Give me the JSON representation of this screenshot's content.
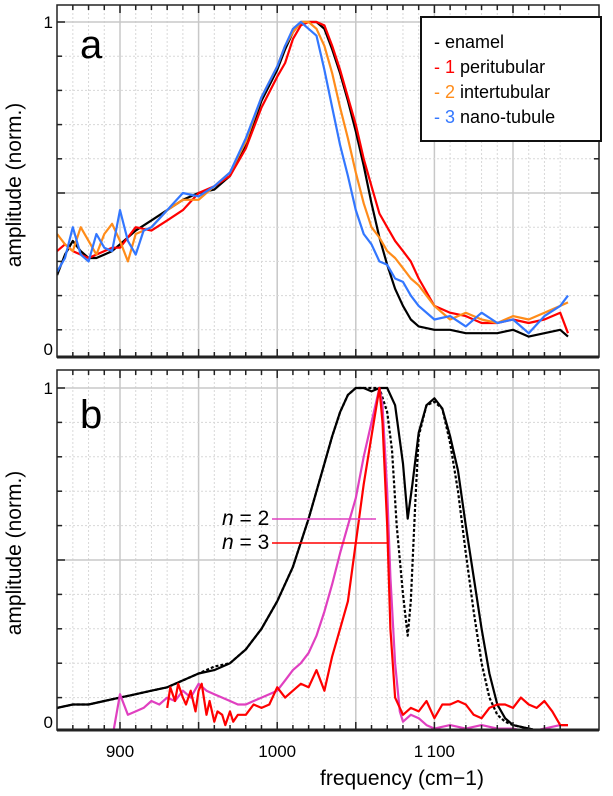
{
  "chart_data": [
    {
      "type": "line",
      "panel_label": "a",
      "ylabel": "amplitude (norm.)",
      "xlabel": "",
      "xlim": [
        860,
        1185
      ],
      "ylim": [
        0,
        1.02
      ],
      "y_tick_labels": [
        {
          "value": 1,
          "label": "1"
        },
        {
          "value": 0,
          "label": "0"
        }
      ],
      "grid": true,
      "legend_position": "top-right",
      "legend": [
        {
          "marker": "-",
          "num": "",
          "label": "enamel",
          "color": "#000000"
        },
        {
          "marker": "-",
          "num": "1",
          "label": "peritubular",
          "color": "#ff0000"
        },
        {
          "marker": "-",
          "num": "2",
          "label": "intertubular",
          "color": "#ff8c1a"
        },
        {
          "marker": "-",
          "num": "3",
          "label": "nano-tubule",
          "color": "#3377ff"
        }
      ],
      "series": [
        {
          "name": "enamel",
          "color": "#000000",
          "x": [
            860,
            865,
            870,
            875,
            880,
            885,
            890,
            895,
            900,
            910,
            920,
            930,
            940,
            950,
            960,
            970,
            980,
            990,
            1000,
            1005,
            1010,
            1015,
            1020,
            1025,
            1030,
            1035,
            1040,
            1045,
            1050,
            1055,
            1060,
            1065,
            1070,
            1075,
            1080,
            1085,
            1090,
            1100,
            1110,
            1120,
            1130,
            1140,
            1150,
            1160,
            1170,
            1180,
            1185
          ],
          "y": [
            0.26,
            0.32,
            0.36,
            0.33,
            0.31,
            0.31,
            0.32,
            0.33,
            0.35,
            0.39,
            0.42,
            0.45,
            0.48,
            0.5,
            0.51,
            0.55,
            0.64,
            0.77,
            0.86,
            0.92,
            0.97,
            1.0,
            1.0,
            1.0,
            0.98,
            0.92,
            0.85,
            0.77,
            0.68,
            0.58,
            0.47,
            0.37,
            0.29,
            0.22,
            0.17,
            0.13,
            0.11,
            0.1,
            0.1,
            0.09,
            0.09,
            0.09,
            0.1,
            0.08,
            0.09,
            0.1,
            0.08
          ]
        },
        {
          "name": "1 peritubular",
          "color": "#ff0000",
          "x": [
            860,
            865,
            870,
            875,
            880,
            885,
            890,
            895,
            900,
            910,
            920,
            930,
            940,
            950,
            960,
            970,
            980,
            990,
            1000,
            1005,
            1010,
            1015,
            1020,
            1025,
            1030,
            1035,
            1040,
            1045,
            1050,
            1055,
            1060,
            1065,
            1070,
            1075,
            1080,
            1085,
            1090,
            1100,
            1110,
            1120,
            1130,
            1140,
            1150,
            1160,
            1170,
            1180,
            1185
          ],
          "y": [
            0.33,
            0.35,
            0.33,
            0.32,
            0.31,
            0.32,
            0.33,
            0.34,
            0.34,
            0.4,
            0.39,
            0.42,
            0.45,
            0.5,
            0.52,
            0.55,
            0.63,
            0.75,
            0.84,
            0.88,
            0.95,
            0.99,
            1.0,
            1.0,
            0.99,
            0.93,
            0.86,
            0.78,
            0.7,
            0.6,
            0.52,
            0.44,
            0.4,
            0.36,
            0.33,
            0.3,
            0.25,
            0.17,
            0.15,
            0.14,
            0.12,
            0.12,
            0.13,
            0.12,
            0.13,
            0.15,
            0.09
          ]
        },
        {
          "name": "2 intertubular",
          "color": "#ff8c1a",
          "x": [
            860,
            865,
            870,
            875,
            880,
            885,
            890,
            895,
            900,
            905,
            910,
            920,
            930,
            940,
            950,
            960,
            970,
            980,
            990,
            1000,
            1005,
            1010,
            1015,
            1020,
            1025,
            1030,
            1035,
            1040,
            1045,
            1050,
            1055,
            1060,
            1065,
            1070,
            1075,
            1080,
            1085,
            1090,
            1100,
            1110,
            1120,
            1130,
            1140,
            1150,
            1160,
            1170,
            1180,
            1185
          ],
          "y": [
            0.38,
            0.35,
            0.33,
            0.4,
            0.36,
            0.32,
            0.38,
            0.41,
            0.36,
            0.3,
            0.38,
            0.4,
            0.45,
            0.48,
            0.48,
            0.52,
            0.56,
            0.65,
            0.78,
            0.87,
            0.93,
            0.97,
            1.0,
            1.0,
            0.98,
            0.93,
            0.85,
            0.75,
            0.66,
            0.56,
            0.47,
            0.4,
            0.37,
            0.33,
            0.31,
            0.28,
            0.25,
            0.23,
            0.17,
            0.13,
            0.15,
            0.13,
            0.12,
            0.14,
            0.13,
            0.15,
            0.17,
            0.18
          ]
        },
        {
          "name": "3 nano-tubule",
          "color": "#3377ff",
          "x": [
            860,
            865,
            870,
            875,
            880,
            885,
            890,
            895,
            900,
            905,
            910,
            915,
            920,
            930,
            940,
            950,
            960,
            970,
            980,
            990,
            1000,
            1005,
            1010,
            1015,
            1020,
            1025,
            1030,
            1035,
            1040,
            1045,
            1050,
            1055,
            1060,
            1065,
            1070,
            1075,
            1080,
            1085,
            1090,
            1100,
            1110,
            1120,
            1130,
            1140,
            1150,
            1160,
            1170,
            1180,
            1185
          ],
          "y": [
            0.27,
            0.31,
            0.4,
            0.32,
            0.3,
            0.38,
            0.34,
            0.33,
            0.45,
            0.36,
            0.32,
            0.39,
            0.4,
            0.45,
            0.5,
            0.49,
            0.52,
            0.56,
            0.66,
            0.78,
            0.87,
            0.93,
            0.98,
            1.0,
            0.98,
            0.96,
            0.86,
            0.75,
            0.64,
            0.55,
            0.45,
            0.38,
            0.35,
            0.3,
            0.29,
            0.25,
            0.24,
            0.2,
            0.17,
            0.13,
            0.14,
            0.11,
            0.15,
            0.12,
            0.13,
            0.09,
            0.14,
            0.17,
            0.2
          ]
        }
      ]
    },
    {
      "type": "line",
      "panel_label": "b",
      "ylabel": "amplitude (norm.)",
      "xlabel": "frequency (cm−1)",
      "xlim": [
        860,
        1185
      ],
      "ylim": [
        0,
        1.02
      ],
      "x_tick_labels": [
        {
          "value": 900,
          "label": "900"
        },
        {
          "value": 1000,
          "label": "1000"
        },
        {
          "value": 1100,
          "label": "1 100"
        }
      ],
      "y_tick_labels": [
        {
          "value": 1,
          "label": "1"
        },
        {
          "value": 0,
          "label": "0"
        }
      ],
      "grid": true,
      "annotations": [
        {
          "text_italic": "n",
          "text": " = 2",
          "color": "#e040c0",
          "points_to_x": 1055,
          "points_to_y": 0.59
        },
        {
          "text_italic": "n",
          "text": " = 3",
          "color": "#ff0000",
          "points_to_x": 1059,
          "points_to_y": 0.52
        }
      ],
      "series": [
        {
          "name": "enamel (solid)",
          "color": "#000000",
          "style": "solid",
          "x": [
            860,
            870,
            880,
            890,
            900,
            910,
            920,
            930,
            940,
            950,
            960,
            970,
            980,
            990,
            1000,
            1010,
            1020,
            1030,
            1035,
            1040,
            1045,
            1050,
            1055,
            1060,
            1065,
            1070,
            1075,
            1080,
            1083,
            1086,
            1090,
            1095,
            1100,
            1105,
            1110,
            1115,
            1120,
            1125,
            1130,
            1135,
            1140,
            1145,
            1150,
            1160,
            1170,
            1180,
            1185
          ],
          "y": [
            0.07,
            0.08,
            0.08,
            0.09,
            0.1,
            0.11,
            0.12,
            0.13,
            0.15,
            0.17,
            0.18,
            0.2,
            0.24,
            0.3,
            0.38,
            0.48,
            0.62,
            0.78,
            0.86,
            0.93,
            0.98,
            1.0,
            1.0,
            0.99,
            1.0,
            1.0,
            0.95,
            0.78,
            0.62,
            0.72,
            0.87,
            0.95,
            0.97,
            0.94,
            0.86,
            0.76,
            0.6,
            0.45,
            0.3,
            0.17,
            0.08,
            0.04,
            0.02,
            0.01,
            0.0,
            0.0,
            0.0
          ]
        },
        {
          "name": "enamel (dotted)",
          "color": "#000000",
          "style": "dotted",
          "x": [
            860,
            870,
            880,
            890,
            900,
            910,
            920,
            930,
            940,
            950,
            960,
            970,
            980,
            990,
            1000,
            1010,
            1020,
            1030,
            1035,
            1040,
            1045,
            1050,
            1055,
            1060,
            1065,
            1070,
            1073,
            1076,
            1080,
            1083,
            1085,
            1088,
            1090,
            1095,
            1100,
            1105,
            1110,
            1115,
            1120,
            1125,
            1130,
            1135,
            1140,
            1145,
            1150,
            1160,
            1170,
            1180,
            1185
          ],
          "y": [
            0.07,
            0.08,
            0.08,
            0.09,
            0.1,
            0.11,
            0.12,
            0.13,
            0.15,
            0.17,
            0.19,
            0.2,
            0.24,
            0.3,
            0.38,
            0.48,
            0.62,
            0.78,
            0.86,
            0.93,
            0.98,
            1.0,
            1.0,
            1.0,
            1.0,
            0.93,
            0.82,
            0.6,
            0.4,
            0.28,
            0.38,
            0.68,
            0.86,
            0.95,
            0.96,
            0.94,
            0.84,
            0.7,
            0.52,
            0.35,
            0.2,
            0.1,
            0.05,
            0.03,
            0.02,
            0.01,
            0.0,
            0.0,
            0.0
          ]
        },
        {
          "name": "n = 2",
          "color": "#e040c0",
          "style": "solid",
          "x": [
            895,
            900,
            905,
            910,
            915,
            920,
            925,
            930,
            935,
            940,
            945,
            950,
            955,
            960,
            965,
            970,
            975,
            980,
            985,
            990,
            995,
            1000,
            1005,
            1010,
            1015,
            1020,
            1025,
            1030,
            1035,
            1040,
            1045,
            1050,
            1055,
            1060,
            1065,
            1067,
            1070,
            1072,
            1075,
            1078,
            1080,
            1085,
            1090,
            1095,
            1100,
            1110,
            1120,
            1130,
            1140,
            1150,
            1160,
            1170,
            1180,
            1185
          ],
          "y": [
            -0.02,
            0.11,
            0.05,
            0.06,
            0.07,
            0.09,
            0.08,
            0.1,
            0.09,
            0.12,
            0.1,
            0.14,
            0.12,
            0.11,
            0.1,
            0.09,
            0.08,
            0.08,
            0.09,
            0.1,
            0.11,
            0.12,
            0.15,
            0.18,
            0.2,
            0.23,
            0.28,
            0.35,
            0.43,
            0.52,
            0.6,
            0.68,
            0.8,
            0.9,
            1.0,
            0.95,
            0.7,
            0.45,
            0.2,
            0.06,
            0.03,
            0.05,
            0.04,
            0.02,
            0.01,
            0.02,
            0.01,
            0.02,
            0.01,
            0.01,
            0.0,
            0.01,
            0.02,
            0.02
          ]
        },
        {
          "name": "n = 3",
          "color": "#ff0000",
          "style": "solid",
          "x": [
            930,
            932,
            935,
            937,
            940,
            942,
            945,
            948,
            950,
            952,
            955,
            957,
            960,
            962,
            965,
            967,
            970,
            972,
            975,
            980,
            985,
            990,
            995,
            1000,
            1005,
            1010,
            1015,
            1020,
            1025,
            1030,
            1035,
            1040,
            1045,
            1050,
            1055,
            1060,
            1065,
            1067,
            1070,
            1072,
            1075,
            1080,
            1085,
            1090,
            1095,
            1100,
            1105,
            1110,
            1115,
            1120,
            1125,
            1130,
            1135,
            1140,
            1145,
            1150,
            1155,
            1160,
            1165,
            1170,
            1175,
            1180,
            1185
          ],
          "y": [
            0.07,
            0.13,
            0.09,
            0.14,
            0.1,
            0.08,
            0.12,
            0.06,
            0.12,
            0.14,
            0.05,
            0.09,
            0.03,
            0.06,
            0.05,
            0.02,
            0.06,
            0.03,
            0.05,
            0.05,
            0.08,
            0.07,
            0.08,
            0.13,
            0.1,
            0.12,
            0.14,
            0.13,
            0.18,
            0.12,
            0.22,
            0.3,
            0.38,
            0.55,
            0.72,
            0.86,
            1.0,
            0.9,
            0.6,
            0.3,
            0.1,
            0.05,
            0.07,
            0.06,
            0.09,
            0.04,
            0.08,
            0.08,
            0.09,
            0.08,
            0.05,
            0.04,
            0.07,
            0.08,
            0.08,
            0.07,
            0.1,
            0.08,
            0.07,
            0.09,
            0.06,
            0.02,
            0.02
          ]
        }
      ]
    }
  ]
}
